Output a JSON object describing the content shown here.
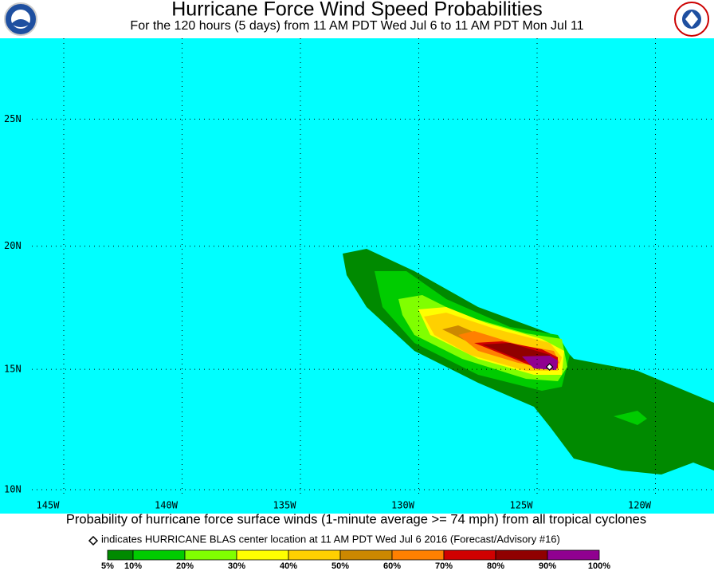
{
  "header": {
    "title": "Hurricane Force Wind Speed Probabilities",
    "subtitle": "For the 120 hours (5 days) from 11 AM PDT Wed Jul 6 to 11 AM PDT Mon Jul 11"
  },
  "map": {
    "lat_ticks": [
      {
        "value": 10,
        "label": "10N"
      },
      {
        "value": 15,
        "label": "15N"
      },
      {
        "value": 20,
        "label": "20N"
      },
      {
        "value": 25,
        "label": "25N"
      }
    ],
    "lon_ticks": [
      {
        "value": -145,
        "label": "145W"
      },
      {
        "value": -140,
        "label": "140W"
      },
      {
        "value": -135,
        "label": "135W"
      },
      {
        "value": -130,
        "label": "130W"
      },
      {
        "value": -125,
        "label": "125W"
      },
      {
        "value": -120,
        "label": "120W"
      }
    ],
    "storm_center": {
      "lon": -123.8,
      "lat": 15.1
    }
  },
  "caption": "Probability of hurricane force surface winds (1-minute average >= 74 mph) from all tropical cyclones",
  "legend": {
    "note": "indicates HURRICANE BLAS center location at 11 AM PDT Wed Jul 6 2016 (Forecast/Advisory #16)",
    "colors": [
      "#008a00",
      "#00cc00",
      "#80ff00",
      "#ffff00",
      "#ffd000",
      "#cc8800",
      "#ff8000",
      "#d00000",
      "#900000",
      "#900090"
    ],
    "ticks": [
      {
        "value": 5,
        "label": "5%"
      },
      {
        "value": 10,
        "label": "10%"
      },
      {
        "value": 20,
        "label": "20%"
      },
      {
        "value": 30,
        "label": "30%"
      },
      {
        "value": 40,
        "label": "40%"
      },
      {
        "value": 50,
        "label": "50%"
      },
      {
        "value": 60,
        "label": "60%"
      },
      {
        "value": 70,
        "label": "70%"
      },
      {
        "value": 80,
        "label": "80%"
      },
      {
        "value": 90,
        "label": "90%"
      },
      {
        "value": 100,
        "label": "100%"
      }
    ]
  }
}
